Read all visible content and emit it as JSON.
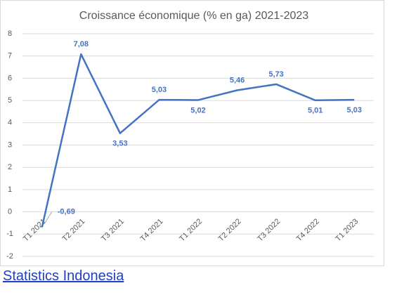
{
  "chart_data": {
    "type": "line",
    "title": "Croissance économique (% en ga) 2021-2023",
    "categories": [
      "T1 2021",
      "T2 2021",
      "T3 2021",
      "T4 2021",
      "T1 2022",
      "T2 2022",
      "T3 2022",
      "T4 2022",
      "T1 2023"
    ],
    "values": [
      -0.69,
      7.08,
      3.53,
      5.03,
      5.02,
      5.46,
      5.73,
      5.01,
      5.03
    ],
    "value_labels": [
      "-0,69",
      "7,08",
      "3,53",
      "5,03",
      "5,02",
      "5,46",
      "5,73",
      "5,01",
      "5,03"
    ],
    "color": "#4472c4",
    "ylim": [
      -2,
      8
    ],
    "yticks": [
      -2,
      -1,
      0,
      1,
      2,
      3,
      4,
      5,
      6,
      7,
      8
    ],
    "grid": true
  },
  "source": "Statistics Indonesia"
}
